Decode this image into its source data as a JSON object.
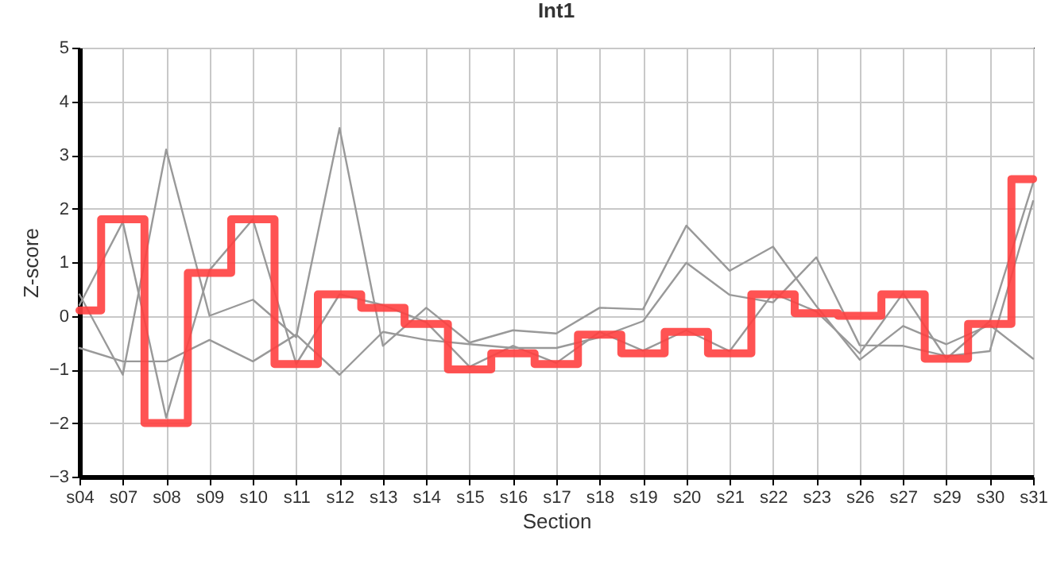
{
  "chart_data": {
    "type": "line",
    "title": "Int1",
    "xlabel": "Section",
    "ylabel": "Z-score",
    "categories": [
      "s04",
      "s07",
      "s08",
      "s09",
      "s10",
      "s11",
      "s12",
      "s13",
      "s14",
      "s15",
      "s16",
      "s17",
      "s18",
      "s19",
      "s20",
      "s21",
      "s22",
      "s23",
      "s26",
      "s27",
      "s29",
      "s30",
      "s31"
    ],
    "series": [
      {
        "color": "#999999",
        "values": [
          0.2,
          1.75,
          -1.9,
          0.85,
          1.8,
          -0.9,
          0.4,
          0.2,
          -0.12,
          -0.95,
          -0.56,
          -0.88,
          -0.3,
          -0.65,
          -0.27,
          -0.66,
          0.42,
          0.08,
          -0.7,
          0.42,
          -0.8,
          -0.1,
          2.48
        ]
      },
      {
        "color": "#999999",
        "values": [
          0.4,
          -1.1,
          3.1,
          0.0,
          0.3,
          -0.4,
          3.5,
          -0.56,
          0.15,
          -0.5,
          -0.27,
          -0.33,
          0.15,
          0.12,
          1.68,
          0.84,
          1.29,
          0.18,
          -0.82,
          -0.19,
          -0.53,
          -0.17,
          -0.8
        ]
      },
      {
        "color": "#999999",
        "values": [
          -0.6,
          -0.85,
          -0.85,
          -0.45,
          -0.85,
          -0.35,
          -1.1,
          -0.3,
          -0.45,
          -0.53,
          -0.6,
          -0.6,
          -0.4,
          -0.1,
          0.99,
          0.39,
          0.25,
          1.09,
          -0.55,
          -0.56,
          -0.75,
          -0.66,
          2.14
        ]
      },
      {
        "type": "step",
        "color": "#ff4040",
        "values": [
          0.1,
          1.8,
          -2.0,
          0.8,
          1.8,
          -0.9,
          0.4,
          0.15,
          -0.15,
          -1.0,
          -0.7,
          -0.9,
          -0.35,
          -0.7,
          -0.3,
          -0.7,
          0.4,
          0.05,
          0.0,
          0.4,
          -0.8,
          -0.15,
          2.55
        ]
      }
    ],
    "ylim": [
      -3,
      5
    ],
    "yticks": [
      -3,
      -2,
      -1,
      0,
      1,
      2,
      3,
      4,
      5
    ],
    "grid": true,
    "marker": "none",
    "line_style": "solid"
  }
}
